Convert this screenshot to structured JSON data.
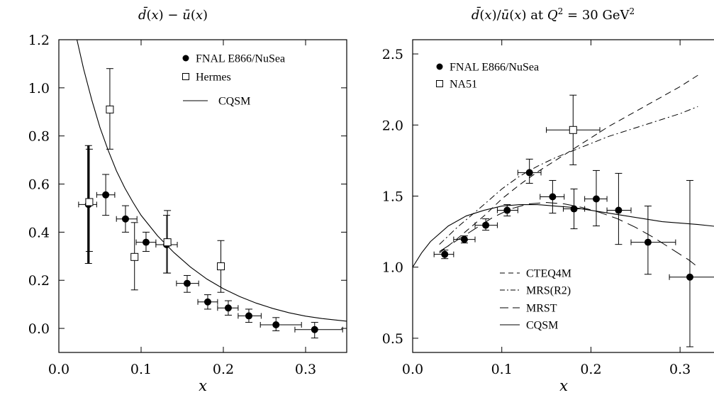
{
  "chart_data": [
    {
      "type": "scatter",
      "title": "d̄(x) − ū(x)",
      "xlabel": "x",
      "ylabel": "",
      "xlim": [
        0,
        0.35
      ],
      "ylim": [
        -0.1,
        1.2
      ],
      "xticks": [
        0,
        0.1,
        0.2,
        0.3
      ],
      "xtick_labels": [
        "0.0",
        "0.1",
        "0.2",
        "0.3"
      ],
      "yticks": [
        0,
        0.2,
        0.4,
        0.6,
        0.8,
        1.0,
        1.2
      ],
      "ytick_labels": [
        "0.0",
        "0.2",
        "0.4",
        "0.6",
        "0.8",
        "1.0",
        "1.2"
      ],
      "legend_position": "top-right",
      "series": [
        {
          "name": "FNAL E866/NuSea",
          "marker": "filled-circle",
          "points": [
            {
              "x": 0.036,
              "y": 0.515,
              "xlo": 0.024,
              "xhi": 0.046,
              "ylo": 0.27,
              "yhi": 0.76,
              "thick": true
            },
            {
              "x": 0.057,
              "y": 0.555,
              "xlo": 0.046,
              "xhi": 0.068,
              "ylo": 0.47,
              "yhi": 0.64
            },
            {
              "x": 0.081,
              "y": 0.455,
              "xlo": 0.07,
              "xhi": 0.095,
              "ylo": 0.4,
              "yhi": 0.51
            },
            {
              "x": 0.106,
              "y": 0.358,
              "xlo": 0.094,
              "xhi": 0.118,
              "ylo": 0.32,
              "yhi": 0.4
            },
            {
              "x": 0.131,
              "y": 0.348,
              "xlo": 0.118,
              "xhi": 0.144,
              "ylo": 0.23,
              "yhi": 0.47
            },
            {
              "x": 0.156,
              "y": 0.187,
              "xlo": 0.143,
              "xhi": 0.17,
              "ylo": 0.15,
              "yhi": 0.22
            },
            {
              "x": 0.181,
              "y": 0.11,
              "xlo": 0.169,
              "xhi": 0.193,
              "ylo": 0.08,
              "yhi": 0.14
            },
            {
              "x": 0.206,
              "y": 0.085,
              "xlo": 0.193,
              "xhi": 0.218,
              "ylo": 0.055,
              "yhi": 0.115
            },
            {
              "x": 0.231,
              "y": 0.052,
              "xlo": 0.218,
              "xhi": 0.246,
              "ylo": 0.025,
              "yhi": 0.08
            },
            {
              "x": 0.264,
              "y": 0.015,
              "xlo": 0.245,
              "xhi": 0.295,
              "ylo": -0.01,
              "yhi": 0.045
            },
            {
              "x": 0.311,
              "y": -0.005,
              "xlo": 0.287,
              "xhi": 0.345,
              "ylo": -0.04,
              "yhi": 0.025
            }
          ]
        },
        {
          "name": "Hermes",
          "marker": "open-square",
          "points": [
            {
              "x": 0.037,
              "y": 0.525,
              "ylo": 0.32,
              "yhi": 0.745
            },
            {
              "x": 0.062,
              "y": 0.91,
              "ylo": 0.745,
              "yhi": 1.08
            },
            {
              "x": 0.092,
              "y": 0.297,
              "ylo": 0.16,
              "yhi": 0.44
            },
            {
              "x": 0.132,
              "y": 0.358,
              "ylo": 0.23,
              "yhi": 0.49
            },
            {
              "x": 0.197,
              "y": 0.258,
              "ylo": 0.15,
              "yhi": 0.365
            }
          ]
        },
        {
          "name": "CQSM",
          "line": "solid",
          "x": [
            0.022,
            0.03,
            0.04,
            0.05,
            0.06,
            0.07,
            0.08,
            0.09,
            0.1,
            0.12,
            0.14,
            0.16,
            0.18,
            0.2,
            0.22,
            0.24,
            0.26,
            0.28,
            0.3,
            0.32,
            0.35
          ],
          "y": [
            1.2,
            1.08,
            0.95,
            0.835,
            0.74,
            0.655,
            0.585,
            0.525,
            0.47,
            0.385,
            0.315,
            0.255,
            0.205,
            0.165,
            0.132,
            0.105,
            0.083,
            0.065,
            0.051,
            0.041,
            0.03
          ]
        }
      ]
    },
    {
      "type": "scatter",
      "title": "d̄(x)/ū(x)  at  Q² = 30 GeV²",
      "xlabel": "x",
      "ylabel": "",
      "xlim": [
        0,
        0.35
      ],
      "ylim": [
        0.4,
        2.6
      ],
      "xticks": [
        0,
        0.1,
        0.2,
        0.3
      ],
      "xtick_labels": [
        "0.0",
        "0.1",
        "0.2",
        "0.3"
      ],
      "yticks": [
        0.5,
        1.0,
        1.5,
        2.0,
        2.5
      ],
      "ytick_labels": [
        "0.5",
        "1.0",
        "1.5",
        "2.0",
        "2.5"
      ],
      "legend_position": "top-left, bottom-center",
      "series": [
        {
          "name": "FNAL E866/NuSea",
          "marker": "filled-circle",
          "points": [
            {
              "x": 0.036,
              "y": 1.09,
              "xlo": 0.024,
              "xhi": 0.046,
              "ylo": 1.06,
              "yhi": 1.12
            },
            {
              "x": 0.058,
              "y": 1.195,
              "xlo": 0.046,
              "xhi": 0.07,
              "ylo": 1.17,
              "yhi": 1.22
            },
            {
              "x": 0.082,
              "y": 1.295,
              "xlo": 0.07,
              "xhi": 0.095,
              "ylo": 1.26,
              "yhi": 1.34
            },
            {
              "x": 0.106,
              "y": 1.4,
              "xlo": 0.095,
              "xhi": 0.118,
              "ylo": 1.36,
              "yhi": 1.44
            },
            {
              "x": 0.131,
              "y": 1.665,
              "xlo": 0.118,
              "xhi": 0.144,
              "ylo": 1.59,
              "yhi": 1.76
            },
            {
              "x": 0.157,
              "y": 1.495,
              "xlo": 0.143,
              "xhi": 0.17,
              "ylo": 1.38,
              "yhi": 1.61
            },
            {
              "x": 0.181,
              "y": 1.41,
              "xlo": 0.169,
              "xhi": 0.193,
              "ylo": 1.27,
              "yhi": 1.55
            },
            {
              "x": 0.206,
              "y": 1.48,
              "xlo": 0.193,
              "xhi": 0.218,
              "ylo": 1.29,
              "yhi": 1.68
            },
            {
              "x": 0.231,
              "y": 1.4,
              "xlo": 0.218,
              "xhi": 0.245,
              "ylo": 1.16,
              "yhi": 1.66
            },
            {
              "x": 0.264,
              "y": 1.175,
              "xlo": 0.245,
              "xhi": 0.295,
              "ylo": 0.95,
              "yhi": 1.43
            },
            {
              "x": 0.311,
              "y": 0.93,
              "xlo": 0.288,
              "xhi": 0.348,
              "ylo": 0.44,
              "yhi": 1.61
            }
          ]
        },
        {
          "name": "NA51",
          "marker": "open-square",
          "points": [
            {
              "x": 0.18,
              "y": 1.965,
              "xlo": 0.15,
              "xhi": 0.21,
              "ylo": 1.72,
              "yhi": 2.21
            }
          ]
        },
        {
          "name": "CTEQ4M",
          "line": "dashed",
          "x": [
            0.03,
            0.05,
            0.08,
            0.1,
            0.12,
            0.14,
            0.16,
            0.18,
            0.2,
            0.22,
            0.24,
            0.26,
            0.28,
            0.3,
            0.32
          ],
          "y": [
            1.1,
            1.2,
            1.36,
            1.48,
            1.58,
            1.67,
            1.75,
            1.83,
            1.91,
            1.99,
            2.06,
            2.13,
            2.2,
            2.27,
            2.35
          ]
        },
        {
          "name": "MRS(R2)",
          "line": "dash-dot",
          "x": [
            0.03,
            0.05,
            0.08,
            0.1,
            0.12,
            0.14,
            0.16,
            0.18,
            0.2,
            0.22,
            0.24,
            0.26,
            0.28,
            0.3,
            0.32
          ],
          "y": [
            1.16,
            1.28,
            1.44,
            1.55,
            1.64,
            1.71,
            1.77,
            1.82,
            1.87,
            1.92,
            1.96,
            2.0,
            2.04,
            2.08,
            2.13
          ]
        },
        {
          "name": "MRST",
          "line": "long-dashed",
          "x": [
            0.03,
            0.05,
            0.07,
            0.09,
            0.11,
            0.13,
            0.15,
            0.17,
            0.19,
            0.21,
            0.23,
            0.25,
            0.27,
            0.29,
            0.31,
            0.32
          ],
          "y": [
            1.11,
            1.19,
            1.27,
            1.35,
            1.41,
            1.445,
            1.455,
            1.445,
            1.42,
            1.385,
            1.34,
            1.28,
            1.21,
            1.13,
            1.05,
            1.0
          ]
        },
        {
          "name": "CQSM",
          "line": "solid",
          "x": [
            0.0,
            0.01,
            0.02,
            0.04,
            0.06,
            0.08,
            0.1,
            0.12,
            0.14,
            0.16,
            0.18,
            0.2,
            0.22,
            0.24,
            0.26,
            0.28,
            0.3,
            0.32,
            0.35
          ],
          "y": [
            1.0,
            1.1,
            1.18,
            1.29,
            1.36,
            1.4,
            1.43,
            1.44,
            1.44,
            1.43,
            1.42,
            1.4,
            1.38,
            1.36,
            1.34,
            1.32,
            1.31,
            1.3,
            1.28
          ]
        }
      ]
    }
  ]
}
